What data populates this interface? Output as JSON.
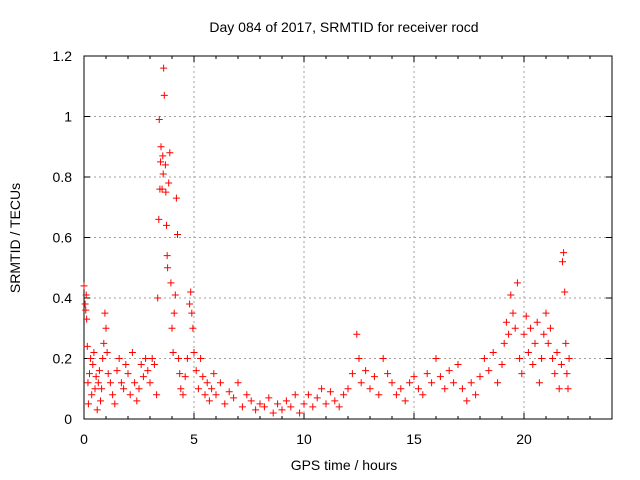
{
  "chart_data": {
    "type": "scatter",
    "title": "Day 084 of 2017, SRMTID for receiver rocd",
    "xlabel": "GPS time / hours",
    "ylabel": "SRMTID / TECUs",
    "xlim": [
      0,
      24
    ],
    "ylim": [
      0,
      1.2
    ],
    "xticks": [
      0,
      5,
      10,
      15,
      20
    ],
    "xtick_labels": [
      "0",
      "5",
      "10",
      "15",
      "20"
    ],
    "yticks": [
      0,
      0.2,
      0.4,
      0.6,
      0.8,
      1.0,
      1.2
    ],
    "ytick_labels": [
      "0",
      "0.2",
      "0.4",
      "0.6",
      "0.8",
      "1",
      "1.2"
    ],
    "grid": true,
    "legend": "none",
    "marker": "+",
    "color": "#ff0000",
    "series": [
      {
        "name": "SRMTID",
        "points": [
          [
            0.0,
            0.44
          ],
          [
            0.05,
            0.38
          ],
          [
            0.08,
            0.36
          ],
          [
            0.1,
            0.41
          ],
          [
            0.12,
            0.33
          ],
          [
            0.15,
            0.24
          ],
          [
            0.18,
            0.12
          ],
          [
            0.2,
            0.05
          ],
          [
            0.25,
            0.15
          ],
          [
            0.3,
            0.2
          ],
          [
            0.35,
            0.08
          ],
          [
            0.4,
            0.18
          ],
          [
            0.45,
            0.22
          ],
          [
            0.5,
            0.1
          ],
          [
            0.55,
            0.14
          ],
          [
            0.6,
            0.03
          ],
          [
            0.65,
            0.12
          ],
          [
            0.7,
            0.16
          ],
          [
            0.75,
            0.06
          ],
          [
            0.8,
            0.1
          ],
          [
            0.85,
            0.2
          ],
          [
            0.9,
            0.25
          ],
          [
            0.95,
            0.35
          ],
          [
            1.0,
            0.3
          ],
          [
            1.05,
            0.22
          ],
          [
            1.1,
            0.15
          ],
          [
            1.2,
            0.12
          ],
          [
            1.3,
            0.08
          ],
          [
            1.4,
            0.05
          ],
          [
            1.5,
            0.16
          ],
          [
            1.6,
            0.2
          ],
          [
            1.7,
            0.12
          ],
          [
            1.8,
            0.1
          ],
          [
            1.9,
            0.18
          ],
          [
            2.0,
            0.15
          ],
          [
            2.1,
            0.08
          ],
          [
            2.2,
            0.22
          ],
          [
            2.3,
            0.12
          ],
          [
            2.4,
            0.06
          ],
          [
            2.5,
            0.1
          ],
          [
            2.6,
            0.18
          ],
          [
            2.7,
            0.14
          ],
          [
            2.8,
            0.2
          ],
          [
            2.9,
            0.16
          ],
          [
            3.0,
            0.12
          ],
          [
            3.1,
            0.2
          ],
          [
            3.2,
            0.18
          ],
          [
            3.3,
            0.08
          ],
          [
            3.35,
            0.4
          ],
          [
            3.4,
            0.66
          ],
          [
            3.42,
            0.99
          ],
          [
            3.45,
            0.76
          ],
          [
            3.48,
            0.85
          ],
          [
            3.5,
            0.9
          ],
          [
            3.55,
            0.76
          ],
          [
            3.58,
            0.87
          ],
          [
            3.6,
            0.81
          ],
          [
            3.62,
            1.16
          ],
          [
            3.65,
            1.07
          ],
          [
            3.7,
            0.84
          ],
          [
            3.72,
            0.75
          ],
          [
            3.75,
            0.64
          ],
          [
            3.78,
            0.54
          ],
          [
            3.8,
            0.5
          ],
          [
            3.85,
            0.78
          ],
          [
            3.9,
            0.88
          ],
          [
            3.95,
            0.45
          ],
          [
            4.0,
            0.3
          ],
          [
            4.05,
            0.22
          ],
          [
            4.1,
            0.35
          ],
          [
            4.15,
            0.41
          ],
          [
            4.2,
            0.73
          ],
          [
            4.25,
            0.61
          ],
          [
            4.3,
            0.2
          ],
          [
            4.35,
            0.15
          ],
          [
            4.4,
            0.1
          ],
          [
            4.5,
            0.08
          ],
          [
            4.6,
            0.14
          ],
          [
            4.7,
            0.2
          ],
          [
            4.8,
            0.38
          ],
          [
            4.85,
            0.42
          ],
          [
            4.9,
            0.35
          ],
          [
            4.95,
            0.3
          ],
          [
            5.0,
            0.22
          ],
          [
            5.1,
            0.16
          ],
          [
            5.2,
            0.1
          ],
          [
            5.3,
            0.2
          ],
          [
            5.4,
            0.14
          ],
          [
            5.5,
            0.08
          ],
          [
            5.6,
            0.12
          ],
          [
            5.7,
            0.06
          ],
          [
            5.8,
            0.1
          ],
          [
            5.9,
            0.15
          ],
          [
            6.0,
            0.08
          ],
          [
            6.2,
            0.12
          ],
          [
            6.4,
            0.05
          ],
          [
            6.6,
            0.09
          ],
          [
            6.8,
            0.07
          ],
          [
            7.0,
            0.12
          ],
          [
            7.2,
            0.04
          ],
          [
            7.4,
            0.08
          ],
          [
            7.6,
            0.06
          ],
          [
            7.8,
            0.03
          ],
          [
            8.0,
            0.05
          ],
          [
            8.2,
            0.04
          ],
          [
            8.4,
            0.07
          ],
          [
            8.6,
            0.02
          ],
          [
            8.8,
            0.05
          ],
          [
            9.0,
            0.03
          ],
          [
            9.2,
            0.06
          ],
          [
            9.4,
            0.04
          ],
          [
            9.6,
            0.08
          ],
          [
            9.8,
            0.02
          ],
          [
            10.0,
            0.05
          ],
          [
            10.2,
            0.08
          ],
          [
            10.4,
            0.04
          ],
          [
            10.6,
            0.07
          ],
          [
            10.8,
            0.1
          ],
          [
            11.0,
            0.05
          ],
          [
            11.2,
            0.09
          ],
          [
            11.4,
            0.06
          ],
          [
            11.6,
            0.04
          ],
          [
            11.8,
            0.08
          ],
          [
            12.0,
            0.1
          ],
          [
            12.2,
            0.15
          ],
          [
            12.4,
            0.28
          ],
          [
            12.5,
            0.2
          ],
          [
            12.6,
            0.12
          ],
          [
            12.8,
            0.16
          ],
          [
            13.0,
            0.1
          ],
          [
            13.2,
            0.14
          ],
          [
            13.4,
            0.08
          ],
          [
            13.6,
            0.2
          ],
          [
            13.8,
            0.15
          ],
          [
            14.0,
            0.12
          ],
          [
            14.2,
            0.08
          ],
          [
            14.4,
            0.1
          ],
          [
            14.6,
            0.06
          ],
          [
            14.8,
            0.12
          ],
          [
            15.0,
            0.14
          ],
          [
            15.2,
            0.1
          ],
          [
            15.4,
            0.08
          ],
          [
            15.6,
            0.15
          ],
          [
            15.8,
            0.12
          ],
          [
            16.0,
            0.2
          ],
          [
            16.2,
            0.14
          ],
          [
            16.4,
            0.1
          ],
          [
            16.6,
            0.16
          ],
          [
            16.8,
            0.12
          ],
          [
            17.0,
            0.18
          ],
          [
            17.2,
            0.1
          ],
          [
            17.4,
            0.06
          ],
          [
            17.6,
            0.12
          ],
          [
            17.8,
            0.08
          ],
          [
            18.0,
            0.14
          ],
          [
            18.2,
            0.2
          ],
          [
            18.4,
            0.16
          ],
          [
            18.6,
            0.22
          ],
          [
            18.8,
            0.12
          ],
          [
            19.0,
            0.18
          ],
          [
            19.1,
            0.25
          ],
          [
            19.2,
            0.32
          ],
          [
            19.3,
            0.28
          ],
          [
            19.4,
            0.41
          ],
          [
            19.5,
            0.35
          ],
          [
            19.6,
            0.3
          ],
          [
            19.7,
            0.45
          ],
          [
            19.8,
            0.2
          ],
          [
            19.9,
            0.15
          ],
          [
            20.0,
            0.28
          ],
          [
            20.1,
            0.34
          ],
          [
            20.2,
            0.22
          ],
          [
            20.3,
            0.3
          ],
          [
            20.4,
            0.18
          ],
          [
            20.5,
            0.25
          ],
          [
            20.6,
            0.32
          ],
          [
            20.7,
            0.12
          ],
          [
            20.8,
            0.2
          ],
          [
            20.9,
            0.28
          ],
          [
            21.0,
            0.35
          ],
          [
            21.1,
            0.25
          ],
          [
            21.2,
            0.3
          ],
          [
            21.3,
            0.2
          ],
          [
            21.4,
            0.15
          ],
          [
            21.5,
            0.22
          ],
          [
            21.6,
            0.1
          ],
          [
            21.7,
            0.18
          ],
          [
            21.75,
            0.52
          ],
          [
            21.8,
            0.55
          ],
          [
            21.85,
            0.42
          ],
          [
            21.9,
            0.25
          ],
          [
            21.95,
            0.15
          ],
          [
            22.0,
            0.1
          ],
          [
            22.05,
            0.2
          ]
        ]
      }
    ]
  }
}
